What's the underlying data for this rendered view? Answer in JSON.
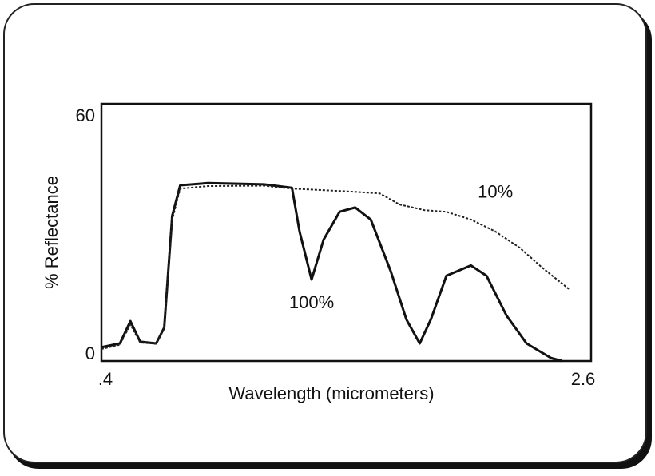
{
  "chart_data": {
    "type": "line",
    "x_label": "Wavelength (micrometers)",
    "y_label": "% Reflectance",
    "xlim": [
      0.4,
      2.6
    ],
    "ylim": [
      0,
      60
    ],
    "xticks": [
      {
        "value": 0.4,
        "label": ".4"
      },
      2.6
    ],
    "yticks": [
      0,
      60
    ],
    "series": [
      {
        "name": "100%",
        "color": "#111111",
        "dash": false,
        "x": [
          0.4,
          0.483,
          0.53,
          0.574,
          0.646,
          0.682,
          0.718,
          0.754,
          0.879,
          1.13,
          1.256,
          1.29,
          1.344,
          1.398,
          1.47,
          1.54,
          1.61,
          1.7,
          1.77,
          1.83,
          1.88,
          1.95,
          2.06,
          2.13,
          2.22,
          2.31,
          2.42,
          2.47
        ],
        "values": [
          3.2,
          4.1,
          9.3,
          4.5,
          4.1,
          7.8,
          33.9,
          41,
          41.5,
          41.2,
          40.4,
          30.2,
          19,
          28.3,
          34.8,
          35.8,
          33,
          20.9,
          9.7,
          4.1,
          9.7,
          19.9,
          22.3,
          19.9,
          10.6,
          4.1,
          0.7,
          0
        ]
      },
      {
        "name": "10%",
        "color": "#222222",
        "dash": true,
        "x": [
          0.4,
          0.483,
          0.53,
          0.574,
          0.646,
          0.682,
          0.718,
          0.754,
          0.879,
          1.13,
          1.256,
          1.38,
          1.525,
          1.65,
          1.74,
          1.85,
          1.95,
          2.06,
          2.17,
          2.28,
          2.38,
          2.5
        ],
        "values": [
          2.8,
          3.8,
          8.5,
          4.3,
          4.0,
          7.5,
          33,
          40.2,
          40.8,
          40.9,
          40.2,
          39.9,
          39.5,
          39.1,
          36.5,
          35.2,
          34.8,
          33,
          30.2,
          26.4,
          21.8,
          16.8
        ]
      }
    ]
  }
}
